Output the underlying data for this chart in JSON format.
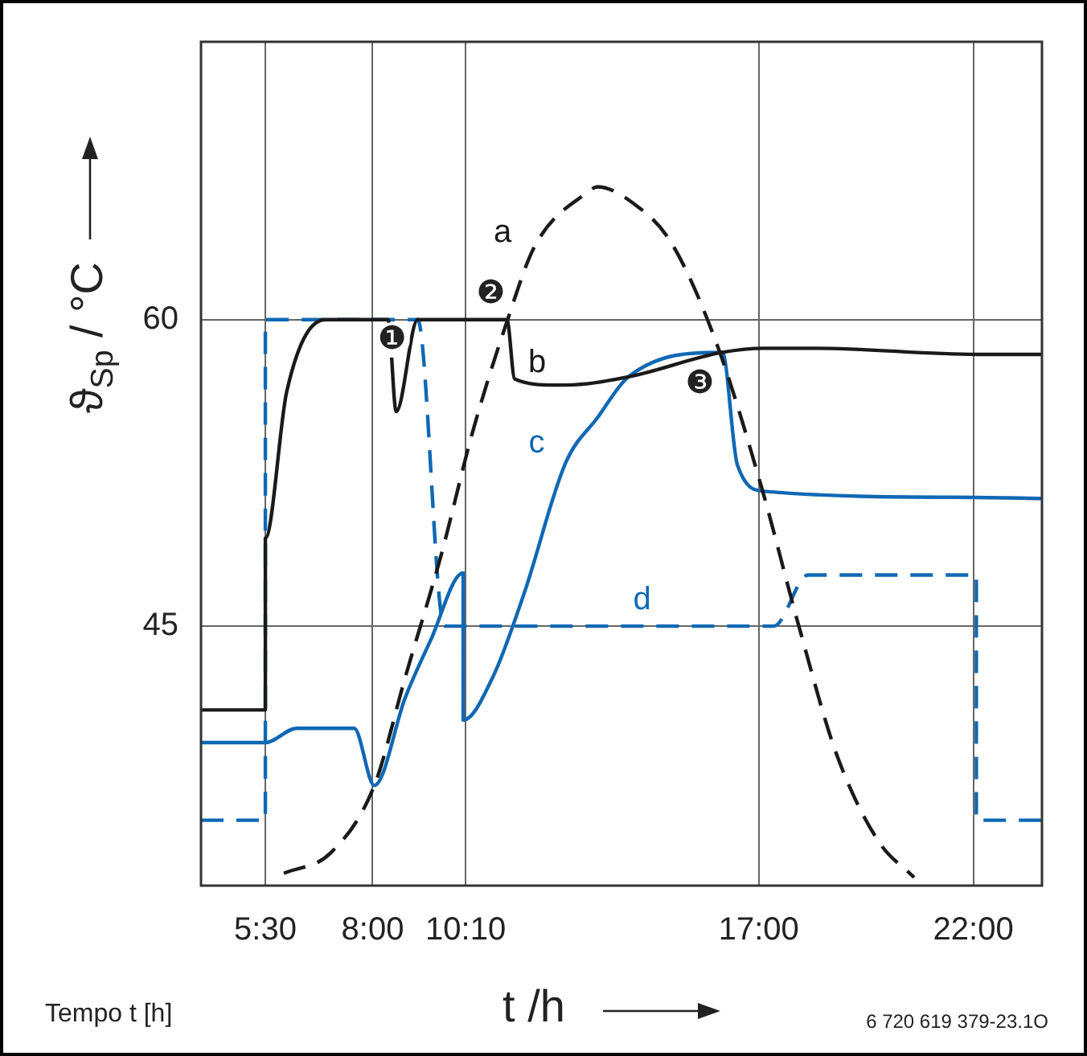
{
  "chart_data": {
    "type": "line",
    "xlabel": "t /h",
    "ylabel": "ϑ$_{Sp}$ / °C",
    "xlim": [
      4,
      23.6
    ],
    "ylim": [
      32.3,
      73.6
    ],
    "xticks": [
      {
        "value": 5.5,
        "label": "5:30"
      },
      {
        "value": 8,
        "label": "8:00"
      },
      {
        "value": 10.1667,
        "label": "10:10"
      },
      {
        "value": 17,
        "label": "17:00"
      },
      {
        "value": 22,
        "label": "22:00"
      }
    ],
    "yticks": [
      45,
      60
    ],
    "grid": true,
    "legend": false,
    "marker": "none",
    "series": [
      {
        "name": "a",
        "color": "#1a1a1a",
        "line_style": "dashed",
        "x": [
          5.93,
          7.02,
          8.04,
          8.76,
          9.6,
          10.33,
          11.13,
          11.78,
          12.98,
          13.24,
          14.07,
          14.95,
          16.04,
          17.05,
          17.96,
          18.8,
          19.78,
          20.62
        ],
        "values": [
          32.9,
          33.9,
          37.2,
          42.5,
          48.5,
          54.5,
          59.9,
          63.6,
          66.2,
          66.5,
          65.7,
          63.8,
          58.7,
          51.9,
          44.8,
          38.8,
          34.5,
          32.7
        ]
      },
      {
        "name": "b",
        "color": "#1a1a1a",
        "line_style": "solid",
        "x": [
          4,
          5.5,
          5.5,
          6.0,
          6.9,
          8.36,
          8.55,
          9.05,
          11.13,
          11.31,
          12.25,
          12.5,
          13.96,
          16.15,
          17.13,
          18.33,
          22.07,
          23.6
        ],
        "values": [
          40.9,
          40.9,
          49.3,
          56.5,
          60,
          60,
          55.5,
          60,
          60,
          57.1,
          56.8,
          56.8,
          57.2,
          58.4,
          58.6,
          58.6,
          58.3,
          58.3
        ]
      },
      {
        "name": "c",
        "color": "#0f68b4",
        "line_style": "solid",
        "x": [
          4,
          5.5,
          6.23,
          7.57,
          8.04,
          8.76,
          9.35,
          10.11,
          10.11,
          10.8,
          11.53,
          12.5,
          13.24,
          13.96,
          16.15,
          16.5,
          17.13,
          22.07,
          23.6
        ],
        "values": [
          39.3,
          39.3,
          40,
          40,
          37.2,
          41.5,
          44.3,
          47.6,
          40.4,
          42.5,
          46.6,
          53,
          55.2,
          57.2,
          58.4,
          52.9,
          51.6,
          51.3,
          51.25
        ]
      },
      {
        "name": "d",
        "color": "#0f68b4",
        "line_style": "dashed",
        "x": [
          4,
          5.5,
          5.5,
          9.05,
          9.67,
          17.35,
          18.15,
          22.07,
          22.07,
          23.6
        ],
        "values": [
          35.5,
          35.5,
          60,
          60,
          45,
          45,
          47.5,
          47.5,
          35.5,
          35.5
        ]
      }
    ],
    "annotations": [
      "❶",
      "❷",
      "❸",
      "Tempo t [h]",
      "6 720 619 379-23.1O"
    ]
  }
}
